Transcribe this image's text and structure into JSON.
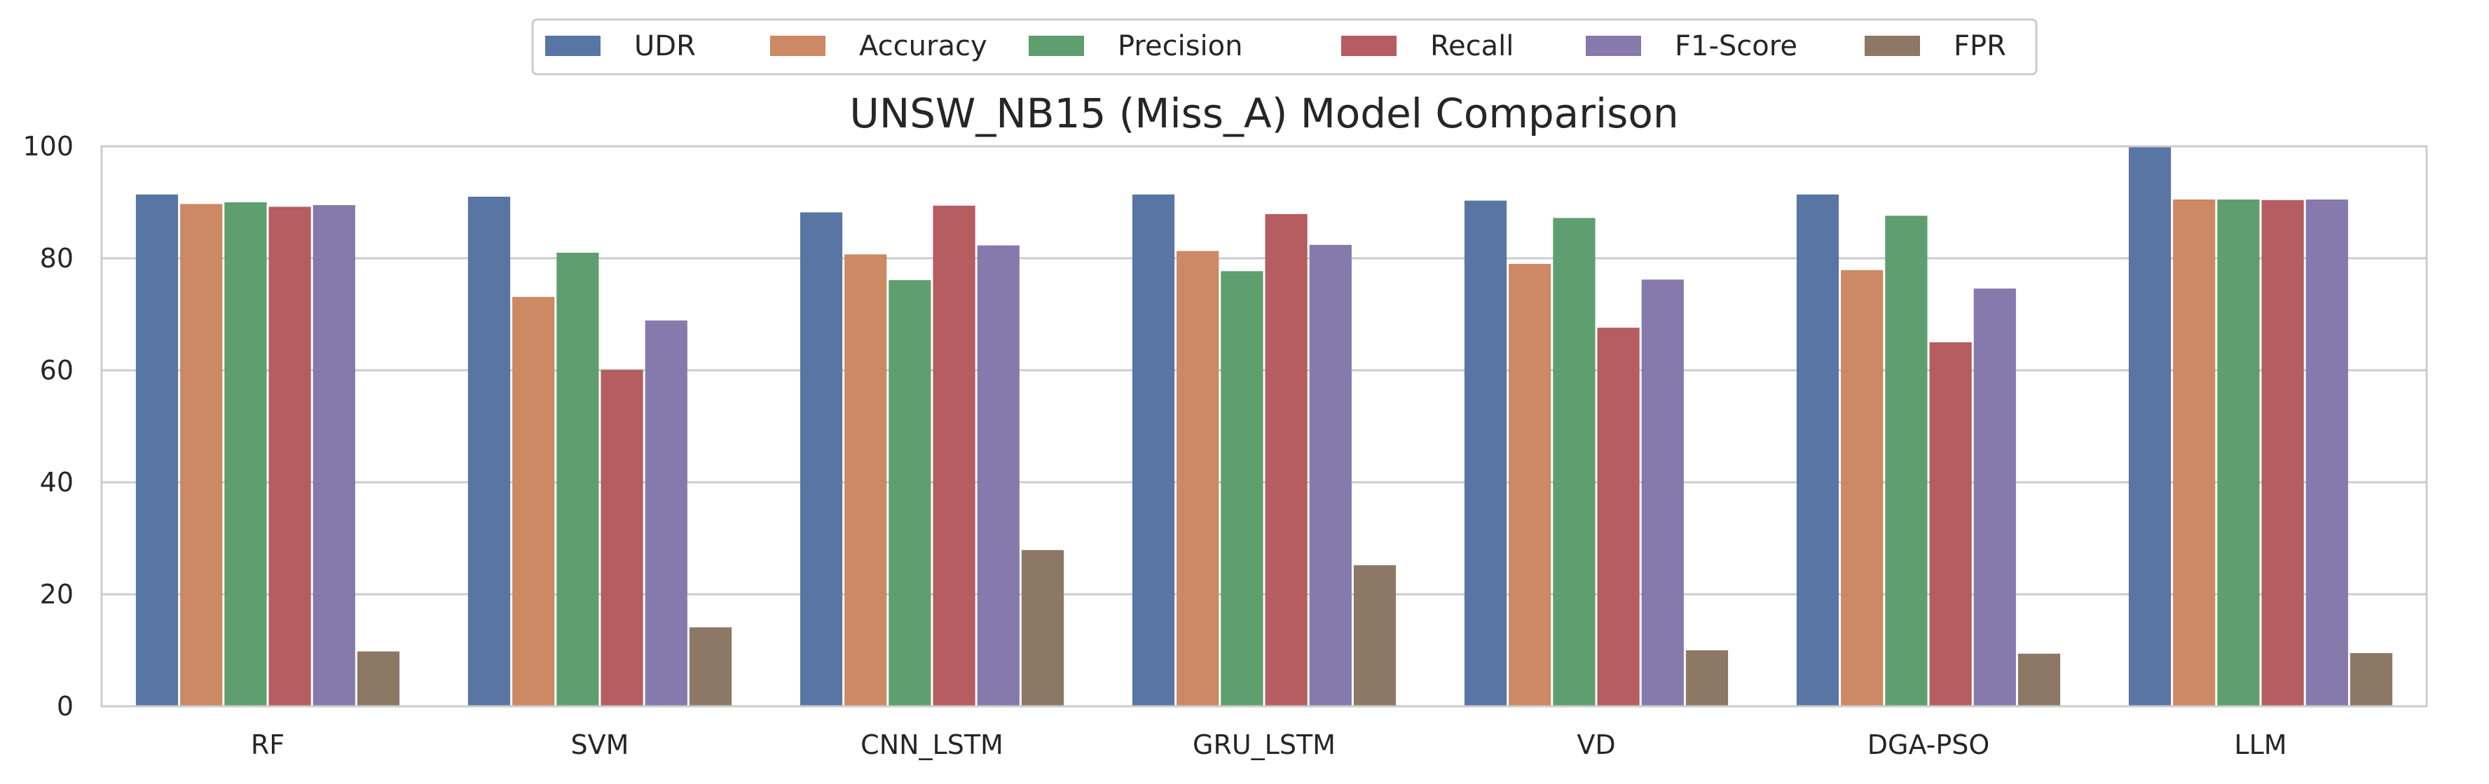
{
  "chart_data": {
    "type": "bar",
    "title": "UNSW_NB15 (Miss_A) Model Comparison",
    "xlabel": "",
    "ylabel": "",
    "ylim": [
      0,
      100
    ],
    "yticks": [
      0,
      20,
      40,
      60,
      80,
      100
    ],
    "grid": "horizontal",
    "legend_position": "top-center",
    "categories": [
      "RF",
      "SVM",
      "CNN_LSTM",
      "GRU_LSTM",
      "VD",
      "DGA-PSO",
      "LLM"
    ],
    "series": [
      {
        "name": "UDR",
        "color": "#5975a4",
        "values": [
          91.4,
          91.0,
          88.2,
          91.4,
          90.3,
          91.4,
          100.0
        ]
      },
      {
        "name": "Accuracy",
        "color": "#cc8963",
        "values": [
          89.7,
          73.1,
          80.7,
          81.3,
          79.0,
          77.9,
          90.5
        ]
      },
      {
        "name": "Precision",
        "color": "#5f9e6e",
        "values": [
          90.0,
          81.0,
          76.1,
          77.7,
          87.2,
          87.6,
          90.5
        ]
      },
      {
        "name": "Recall",
        "color": "#b55d60",
        "values": [
          89.2,
          60.1,
          89.4,
          87.9,
          67.6,
          65.0,
          90.4
        ]
      },
      {
        "name": "F1-Score",
        "color": "#857aab",
        "values": [
          89.5,
          68.9,
          82.3,
          82.4,
          76.2,
          74.6,
          90.5
        ]
      },
      {
        "name": "FPR",
        "color": "#8d7866",
        "values": [
          9.8,
          14.1,
          27.9,
          25.2,
          10.0,
          9.4,
          9.5
        ]
      }
    ]
  }
}
